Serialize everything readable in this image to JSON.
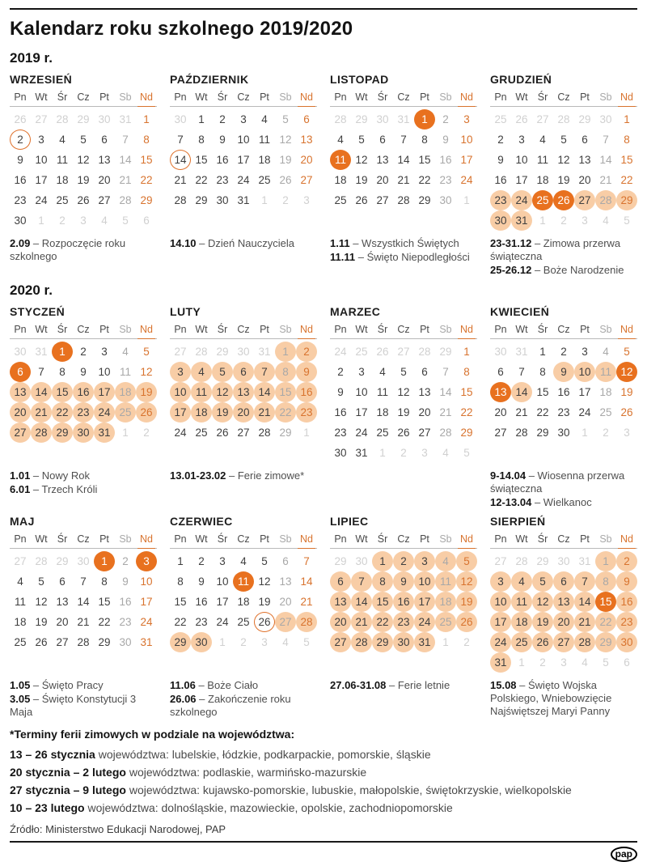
{
  "title": "Kalendarz roku szkolnego 2019/2020",
  "weekdays": [
    "Pn",
    "Wt",
    "Śr",
    "Cz",
    "Pt",
    "Sb",
    "Nd"
  ],
  "colors": {
    "holiday_dark_orange": "#e8711f",
    "break_light_orange": "#f8cda6",
    "sunday_orange": "#d8732e",
    "day_text": "#3f3f3f",
    "saturday_gray": "#a8a8a8",
    "outside_month_gray": "#d0d0d0",
    "rule_black": "#141414"
  },
  "month_groups": [
    {
      "year_label": "2019 r.",
      "months": [
        {
          "name": "WRZESIEŃ",
          "weeks": [
            [
              "26o",
              "27o",
              "28o",
              "29o",
              "30o",
              "31o",
              "1s"
            ],
            [
              "2r",
              "3",
              "4",
              "5",
              "6",
              "7a",
              "8s"
            ],
            [
              "9",
              "10",
              "11",
              "12",
              "13",
              "14a",
              "15s"
            ],
            [
              "16",
              "17",
              "18",
              "19",
              "20",
              "21a",
              "22s"
            ],
            [
              "23",
              "24",
              "25",
              "26",
              "27",
              "28a",
              "29s"
            ],
            [
              "30",
              "1o",
              "2o",
              "3o",
              "4o",
              "5o",
              "6o"
            ]
          ],
          "notes": [
            {
              "b": "2.09",
              "t": " – Rozpoczęcie roku szkolnego"
            }
          ]
        },
        {
          "name": "PAŹDZIERNIK",
          "weeks": [
            [
              "30o",
              "1",
              "2",
              "3",
              "4",
              "5a",
              "6s"
            ],
            [
              "7",
              "8",
              "9",
              "10",
              "11",
              "12a",
              "13s"
            ],
            [
              "14r",
              "15",
              "16",
              "17",
              "18",
              "19a",
              "20s"
            ],
            [
              "21",
              "22",
              "23",
              "24",
              "25",
              "26a",
              "27s"
            ],
            [
              "28",
              "29",
              "30",
              "31",
              "1o",
              "2o",
              "3o"
            ]
          ],
          "notes": [
            {
              "b": "14.10",
              "t": " – Dzień Nauczyciela"
            }
          ]
        },
        {
          "name": "LISTOPAD",
          "weeks": [
            [
              "28o",
              "29o",
              "30o",
              "31o",
              "1h",
              "2a",
              "3s"
            ],
            [
              "4",
              "5",
              "6",
              "7",
              "8",
              "9a",
              "10s"
            ],
            [
              "11h",
              "12",
              "13",
              "14",
              "15",
              "16a",
              "17s"
            ],
            [
              "18",
              "19",
              "20",
              "21",
              "22",
              "23a",
              "24s"
            ],
            [
              "25",
              "26",
              "27",
              "28",
              "29",
              "30a",
              "1o"
            ]
          ],
          "notes": [
            {
              "b": "1.11",
              "t": " – Wszystkich Świętych"
            },
            {
              "b": "11.11",
              "t": " – Święto Niepodległości"
            }
          ]
        },
        {
          "name": "GRUDZIEŃ",
          "weeks": [
            [
              "25o",
              "26o",
              "27o",
              "28o",
              "29o",
              "30o",
              "1s"
            ],
            [
              "2",
              "3",
              "4",
              "5",
              "6",
              "7a",
              "8s"
            ],
            [
              "9",
              "10",
              "11",
              "12",
              "13",
              "14a",
              "15s"
            ],
            [
              "16",
              "17",
              "18",
              "19",
              "20",
              "21a",
              "22s"
            ],
            [
              "23b",
              "24b",
              "25h",
              "26h",
              "27b",
              "28ba",
              "29bs"
            ],
            [
              "30b",
              "31b",
              "1o",
              "2o",
              "3o",
              "4o",
              "5o"
            ]
          ],
          "notes": [
            {
              "b": "23-31.12",
              "t": " – Zimowa przerwa świąteczna"
            },
            {
              "b": "25-26.12",
              "t": " – Boże Narodzenie"
            }
          ]
        }
      ]
    },
    {
      "year_label": "2020 r.",
      "months": [
        {
          "name": "STYCZEŃ",
          "weeks": [
            [
              "30o",
              "31o",
              "1h",
              "2",
              "3",
              "4a",
              "5s"
            ],
            [
              "6h",
              "7",
              "8",
              "9",
              "10",
              "11a",
              "12s"
            ],
            [
              "13b",
              "14b",
              "15b",
              "16b",
              "17b",
              "18ba",
              "19bs"
            ],
            [
              "20b",
              "21b",
              "22b",
              "23b",
              "24b",
              "25ba",
              "26bs"
            ],
            [
              "27b",
              "28b",
              "29b",
              "30b",
              "31b",
              "1o",
              "2o"
            ]
          ],
          "notes": [
            {
              "b": "1.01",
              "t": " – Nowy Rok"
            },
            {
              "b": "6.01",
              "t": " – Trzech Króli"
            }
          ]
        },
        {
          "name": "LUTY",
          "weeks": [
            [
              "27o",
              "28o",
              "29o",
              "30o",
              "31o",
              "1ba",
              "2bs"
            ],
            [
              "3b",
              "4b",
              "5b",
              "6b",
              "7b",
              "8ba",
              "9bs"
            ],
            [
              "10b",
              "11b",
              "12b",
              "13b",
              "14b",
              "15ba",
              "16bs"
            ],
            [
              "17b",
              "18b",
              "19b",
              "20b",
              "21b",
              "22ba",
              "23bs"
            ],
            [
              "24",
              "25",
              "26",
              "27",
              "28",
              "29a",
              "1o"
            ]
          ],
          "notes": [
            {
              "b": "13.01-23.02",
              "t": " – Ferie zimowe*"
            }
          ]
        },
        {
          "name": "MARZEC",
          "weeks": [
            [
              "24o",
              "25o",
              "26o",
              "27o",
              "28o",
              "29o",
              "1s"
            ],
            [
              "2",
              "3",
              "4",
              "5",
              "6",
              "7a",
              "8s"
            ],
            [
              "9",
              "10",
              "11",
              "12",
              "13",
              "14a",
              "15s"
            ],
            [
              "16",
              "17",
              "18",
              "19",
              "20",
              "21a",
              "22s"
            ],
            [
              "23",
              "24",
              "25",
              "26",
              "27",
              "28a",
              "29s"
            ],
            [
              "30",
              "31",
              "1o",
              "2o",
              "3o",
              "4o",
              "5o"
            ]
          ],
          "notes": []
        },
        {
          "name": "KWIECIEŃ",
          "weeks": [
            [
              "30o",
              "31o",
              "1",
              "2",
              "3",
              "4a",
              "5s"
            ],
            [
              "6",
              "7",
              "8",
              "9b",
              "10b",
              "11ba",
              "12h"
            ],
            [
              "13h",
              "14b",
              "15",
              "16",
              "17",
              "18a",
              "19s"
            ],
            [
              "20",
              "21",
              "22",
              "23",
              "24",
              "25a",
              "26s"
            ],
            [
              "27",
              "28",
              "29",
              "30",
              "1o",
              "2o",
              "3o"
            ]
          ],
          "notes": [
            {
              "b": "9-14.04",
              "t": " – Wiosenna przerwa świąteczna"
            },
            {
              "b": "12-13.04",
              "t": " – Wielkanoc"
            }
          ]
        }
      ]
    },
    {
      "year_label": null,
      "months": [
        {
          "name": "MAJ",
          "weeks": [
            [
              "27o",
              "28o",
              "29o",
              "30o",
              "1h",
              "2a",
              "3h"
            ],
            [
              "4",
              "5",
              "6",
              "7",
              "8",
              "9a",
              "10s"
            ],
            [
              "11",
              "12",
              "13",
              "14",
              "15",
              "16a",
              "17s"
            ],
            [
              "18",
              "19",
              "20",
              "21",
              "22",
              "23a",
              "24s"
            ],
            [
              "25",
              "26",
              "27",
              "28",
              "29",
              "30a",
              "31s"
            ]
          ],
          "notes": [
            {
              "b": "1.05",
              "t": " – Święto Pracy"
            },
            {
              "b": "3.05",
              "t": " – Święto Konstytucji 3 Maja"
            }
          ]
        },
        {
          "name": "CZERWIEC",
          "weeks": [
            [
              "1",
              "2",
              "3",
              "4",
              "5",
              "6a",
              "7s"
            ],
            [
              "8",
              "9",
              "10",
              "11h",
              "12",
              "13a",
              "14s"
            ],
            [
              "15",
              "16",
              "17",
              "18",
              "19",
              "20a",
              "21s"
            ],
            [
              "22",
              "23",
              "24",
              "25",
              "26r",
              "27ba",
              "28bs"
            ],
            [
              "29b",
              "30b",
              "1o",
              "2o",
              "3o",
              "4o",
              "5o"
            ]
          ],
          "notes": [
            {
              "b": "11.06",
              "t": " – Boże Ciało"
            },
            {
              "b": "26.06",
              "t": " – Zakończenie roku szkolnego"
            }
          ]
        },
        {
          "name": "LIPIEC",
          "weeks": [
            [
              "29o",
              "30o",
              "1b",
              "2b",
              "3b",
              "4ba",
              "5bs"
            ],
            [
              "6b",
              "7b",
              "8b",
              "9b",
              "10b",
              "11ba",
              "12bs"
            ],
            [
              "13b",
              "14b",
              "15b",
              "16b",
              "17b",
              "18ba",
              "19bs"
            ],
            [
              "20b",
              "21b",
              "22b",
              "23b",
              "24b",
              "25ba",
              "26bs"
            ],
            [
              "27b",
              "28b",
              "29b",
              "30b",
              "31b",
              "1o",
              "2o"
            ]
          ],
          "notes": [
            {
              "b": "27.06-31.08",
              "t": " – Ferie letnie"
            }
          ]
        },
        {
          "name": "SIERPIEŃ",
          "weeks": [
            [
              "27o",
              "28o",
              "29o",
              "30o",
              "31o",
              "1ba",
              "2bs"
            ],
            [
              "3b",
              "4b",
              "5b",
              "6b",
              "7b",
              "8ba",
              "9bs"
            ],
            [
              "10b",
              "11b",
              "12b",
              "13b",
              "14b",
              "15h",
              "16bs"
            ],
            [
              "17b",
              "18b",
              "19b",
              "20b",
              "21b",
              "22ba",
              "23bs"
            ],
            [
              "24b",
              "25b",
              "26b",
              "27b",
              "28b",
              "29ba",
              "30bs"
            ],
            [
              "31b",
              "1o",
              "2o",
              "3o",
              "4o",
              "5o",
              "6o"
            ]
          ],
          "notes": [
            {
              "b": "15.08",
              "t": " – Święto Wojska Polskiego, Wniebowzięcie Najświętszej Maryi Panny"
            }
          ]
        }
      ]
    }
  ],
  "footer": {
    "note_title": "*Terminy ferii zimowych w podziale na województwa:",
    "lines": [
      {
        "b": "13 – 26 stycznia",
        "t": " województwa: lubelskie, łódzkie, podkarpackie, pomorskie, śląskie"
      },
      {
        "b": "20 stycznia – 2 lutego",
        "t": " województwa: podlaskie, warmińsko-mazurskie"
      },
      {
        "b": "27 stycznia – 9 lutego",
        "t": " województwa: kujawsko-pomorskie, lubuskie, małopolskie, świętokrzyskie, wielkopolskie"
      },
      {
        "b": "10 – 23 lutego",
        "t": " województwa:  dolnośląskie, mazowieckie, opolskie, zachodniopomorskie"
      }
    ],
    "source": "Źródło: Ministerstwo Edukacji Narodowej, PAP",
    "logo_text": "pap"
  }
}
